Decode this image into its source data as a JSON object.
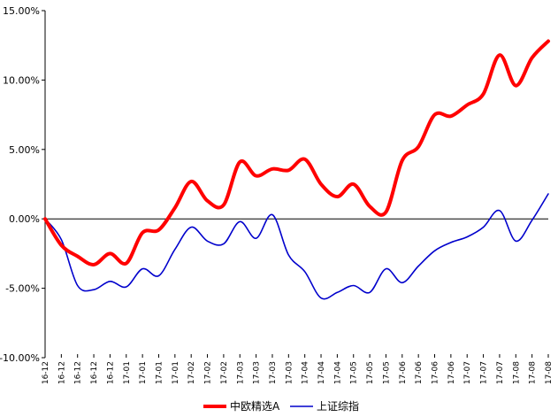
{
  "chart_data": {
    "type": "line",
    "title": "",
    "xlabel": "",
    "ylabel": "",
    "ylim": [
      -10,
      15
    ],
    "y_ticks": [
      -10,
      -5,
      0,
      5,
      10,
      15
    ],
    "y_tick_labels": [
      "-10.00%",
      "-5.00%",
      "0.00%",
      "5.00%",
      "10.00%",
      "15.00%"
    ],
    "x_tick_labels": [
      "16-12",
      "16-12",
      "16-12",
      "16-12",
      "16-12",
      "17-01",
      "17-01",
      "17-01",
      "17-01",
      "17-02",
      "17-02",
      "17-02",
      "17-03",
      "17-03",
      "17-03",
      "17-03",
      "17-04",
      "17-04",
      "17-04",
      "17-05",
      "17-05",
      "17-05",
      "17-06",
      "17-06",
      "17-06",
      "17-06",
      "17-07",
      "17-07",
      "17-07",
      "17-08",
      "17-08",
      "17-08"
    ],
    "grid": false,
    "legend_position": "bottom-center",
    "series": [
      {
        "name": "中欧精选A",
        "color": "#ff0000",
        "x": [
          0,
          1,
          2,
          3,
          4,
          5,
          6,
          7,
          8,
          9,
          10,
          11,
          12,
          13,
          14,
          15,
          16,
          17,
          18,
          19,
          20,
          21,
          22,
          23,
          24,
          25,
          26,
          27,
          28,
          29,
          30,
          31
        ],
        "values": [
          0,
          -1.9,
          -2.7,
          -3.3,
          -2.5,
          -3.2,
          -1.0,
          -0.8,
          0.8,
          2.7,
          1.3,
          1.0,
          4.1,
          3.1,
          3.6,
          3.5,
          4.3,
          2.5,
          1.6,
          2.5,
          0.9,
          0.5,
          4.2,
          5.2,
          7.5,
          7.4,
          8.2,
          9.0,
          11.8,
          9.6,
          11.6,
          12.8
        ]
      },
      {
        "name": "上证综指",
        "color": "#0000cc",
        "x": [
          0,
          1,
          2,
          3,
          4,
          5,
          6,
          7,
          8,
          9,
          10,
          11,
          12,
          13,
          14,
          15,
          16,
          17,
          18,
          19,
          20,
          21,
          22,
          23,
          24,
          25,
          26,
          27,
          28,
          29,
          30,
          31
        ],
        "values": [
          0,
          -1.5,
          -4.8,
          -5.1,
          -4.5,
          -4.9,
          -3.6,
          -4.1,
          -2.2,
          -0.6,
          -1.6,
          -1.8,
          -0.2,
          -1.4,
          0.3,
          -2.6,
          -3.8,
          -5.7,
          -5.3,
          -4.8,
          -5.3,
          -3.6,
          -4.6,
          -3.4,
          -2.3,
          -1.7,
          -1.3,
          -0.6,
          0.6,
          -1.6,
          -0.1,
          1.8
        ]
      }
    ]
  }
}
